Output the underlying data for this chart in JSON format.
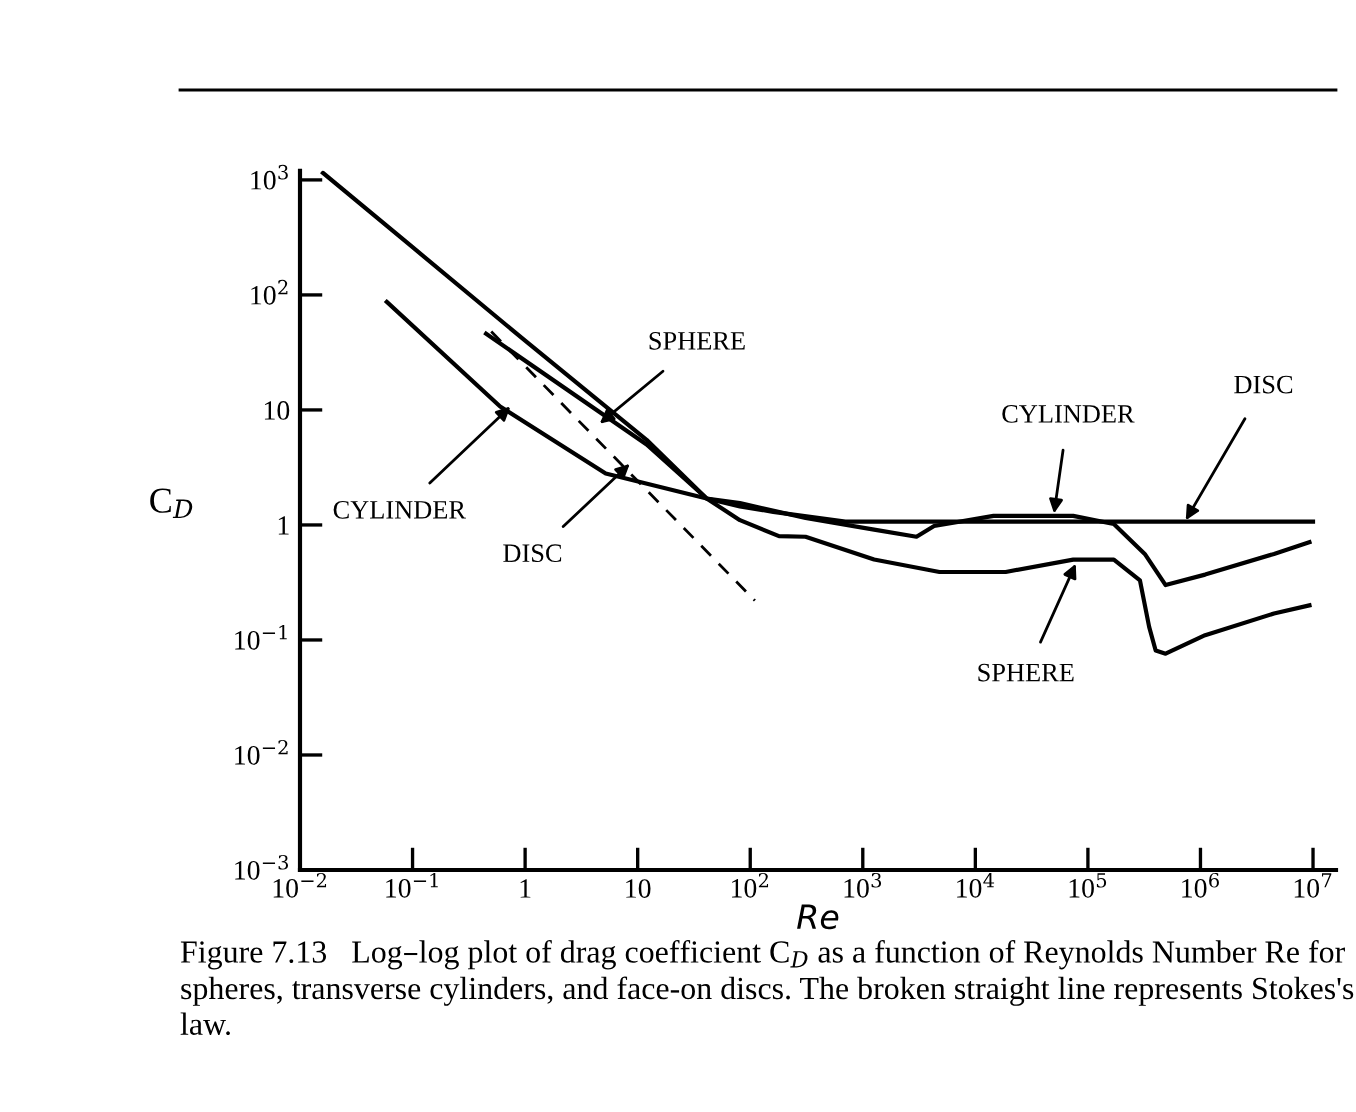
{
  "chart_data": {
    "type": "line",
    "xlabel": "Re",
    "ylabel": "C$_{D}$",
    "log": "xy",
    "grid": false,
    "legend": false,
    "marker": "none",
    "xlim": [
      0.01,
      16000000
    ],
    "ylim": [
      0.001,
      1200
    ],
    "xticks": [
      {
        "value": 0.01,
        "label": "10$^{−2}$"
      },
      {
        "value": 0.1,
        "label": "10$^{−1}$"
      },
      {
        "value": 1,
        "label": "1"
      },
      {
        "value": 10,
        "label": "10"
      },
      {
        "value": 100,
        "label": "10$^{2}$"
      },
      {
        "value": 1000,
        "label": "10$^{3}$"
      },
      {
        "value": 10000,
        "label": "10$^{4}$"
      },
      {
        "value": 100000,
        "label": "10$^{5}$"
      },
      {
        "value": 1000000,
        "label": "10$^{6}$"
      },
      {
        "value": 10000000,
        "label": "10$^{7}$"
      }
    ],
    "yticks": [
      {
        "value": 0.001,
        "label": "10$^{−3}$"
      },
      {
        "value": 0.01,
        "label": "10$^{−2}$"
      },
      {
        "value": 0.1,
        "label": "10$^{−1}$"
      },
      {
        "value": 1,
        "label": "1"
      },
      {
        "value": 10,
        "label": "10"
      },
      {
        "value": 100,
        "label": "10$^{2}$"
      },
      {
        "value": 1000,
        "label": "10$^{3}$"
      }
    ],
    "series": [
      {
        "color": "#000000",
        "line_style": "solid",
        "x": [
          0.016,
          0.1,
          1,
          12,
          41,
          81,
          180,
          310,
          1260,
          4800,
          18600,
          74000,
          170000,
          290000,
          350000,
          400000,
          490000,
          1100000,
          4500000,
          9300000
        ],
        "values": [
          1150,
          260,
          40,
          5.5,
          1.7,
          1.1,
          0.8,
          0.79,
          0.5,
          0.39,
          0.39,
          0.5,
          0.5,
          0.33,
          0.13,
          0.081,
          0.076,
          0.11,
          0.17,
          0.2
        ]
      },
      {
        "color": "#000000",
        "line_style": "solid",
        "x": [
          0.059,
          0.6,
          5.2,
          41,
          81,
          310,
          1260,
          3000,
          4300,
          14500,
          74000,
          170000,
          320000,
          490000,
          1100000,
          4500000,
          9300000
        ],
        "values": [
          87,
          10.7,
          2.8,
          1.7,
          1.55,
          1.15,
          0.91,
          0.79,
          0.98,
          1.2,
          1.2,
          1.02,
          0.56,
          0.3,
          0.37,
          0.56,
          0.71
        ]
      },
      {
        "color": "#000000",
        "line_style": "solid",
        "x": [
          0.45,
          12,
          41,
          81,
          160,
          700,
          10000000
        ],
        "values": [
          46,
          5.0,
          1.7,
          1.45,
          1.3,
          1.07,
          1.07
        ]
      },
      {
        "color": "#000000",
        "line_style": "dashed",
        "x": [
          0.5,
          110
        ],
        "values": [
          48,
          0.22
        ]
      }
    ],
    "annotations": [
      {
        "text": "SPHERE",
        "x": 4.6,
        "y": 7.6
      },
      {
        "text": "CYLINDER",
        "x": 0.74,
        "y": 10.7
      },
      {
        "text": "DISC",
        "x": 8.5,
        "y": 3.4
      },
      {
        "text": "CYLINDER",
        "x": 50000,
        "y": 1.26
      },
      {
        "text": "DISC",
        "x": 740000,
        "y": 1.1
      },
      {
        "text": "SPHERE",
        "x": 78000,
        "y": 0.46
      },
      "Figure 7.13   Log–log plot of drag coefficient C$_{D}$ as a function of Reynolds Number Re for spheres, transverse cylinders, and face-on discs. The broken straight line represents Stokes's law."
    ]
  }
}
